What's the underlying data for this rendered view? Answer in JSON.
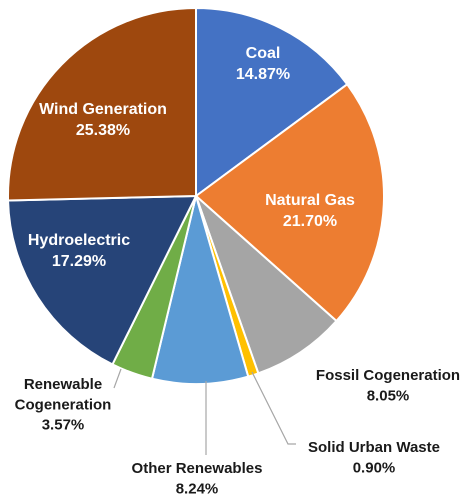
{
  "chart_data": {
    "type": "pie",
    "start_angle_deg": 0,
    "slices": [
      {
        "label": "Coal",
        "value": 14.87,
        "value_text": "14.87%",
        "color": "#4472C4",
        "label_position": "inside"
      },
      {
        "label": "Natural Gas",
        "value": 21.7,
        "value_text": "21.70%",
        "color": "#ED7D31",
        "label_position": "inside"
      },
      {
        "label": "Fossil Cogeneration",
        "value": 8.05,
        "value_text": "8.05%",
        "color": "#A5A5A5",
        "label_position": "outside"
      },
      {
        "label": "Solid Urban Waste",
        "value": 0.9,
        "value_text": "0.90%",
        "color": "#FFC000",
        "label_position": "outside"
      },
      {
        "label": "Other Renewables",
        "value": 8.24,
        "value_text": "8.24%",
        "color": "#5B9BD5",
        "label_position": "outside"
      },
      {
        "label": "Renewable Cogeneration",
        "value": 3.57,
        "value_text": "3.57%",
        "color": "#70AD47",
        "label_position": "outside"
      },
      {
        "label": "Hydroelectric",
        "value": 17.29,
        "value_text": "17.29%",
        "color": "#264478",
        "label_position": "inside"
      },
      {
        "label": "Wind Generation",
        "value": 25.38,
        "value_text": "25.38%",
        "color": "#9E480E",
        "label_position": "inside"
      }
    ]
  }
}
